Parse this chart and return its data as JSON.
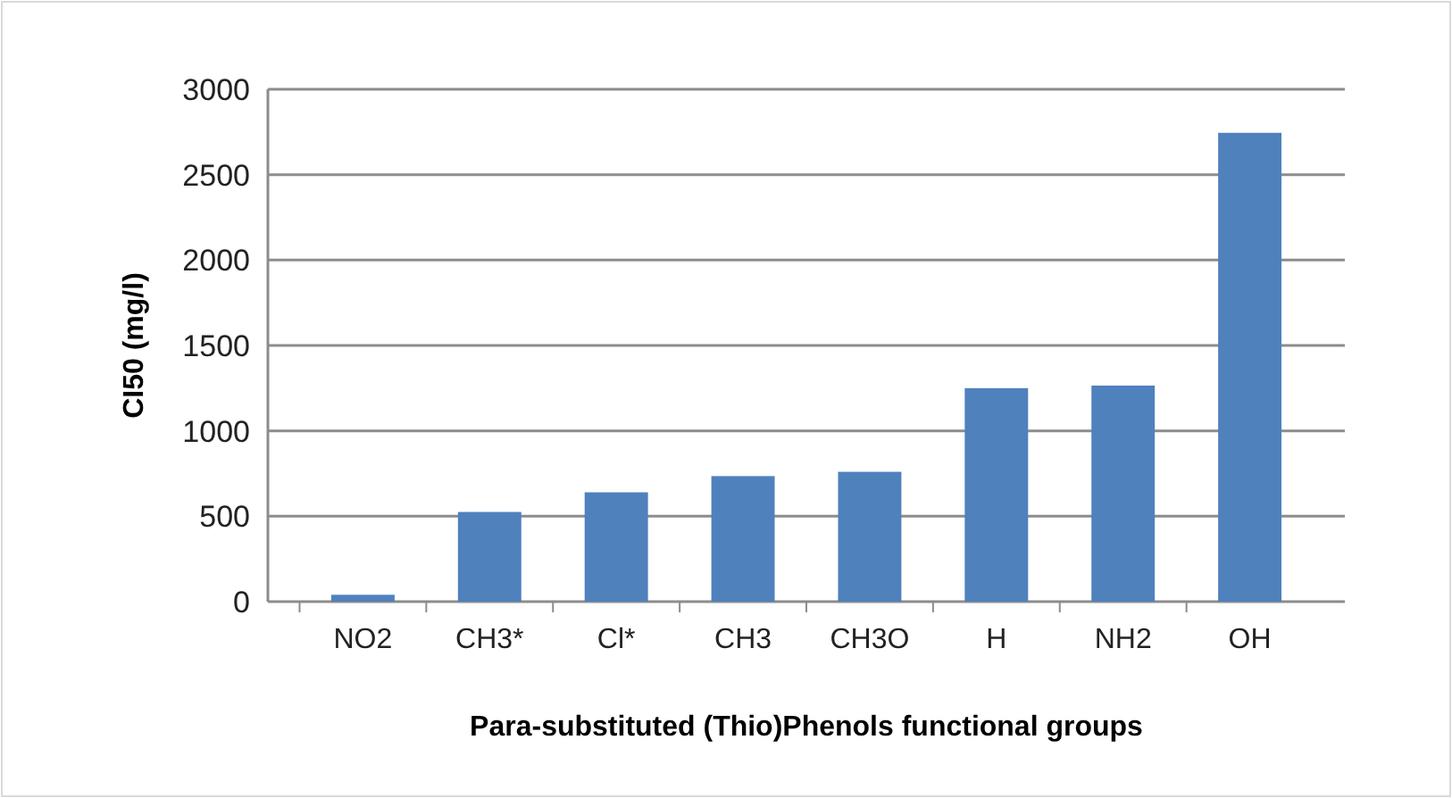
{
  "chart_data": {
    "type": "bar",
    "xlabel": "Para-substituted  (Thio)Phenols functional groups",
    "ylabel": "CI50 (mg/l)",
    "categories": [
      "NO2",
      "CH3*",
      "Cl*",
      "CH3",
      "CH3O",
      "H",
      "NH2",
      "OH"
    ],
    "values": [
      40,
      525,
      640,
      735,
      760,
      1250,
      1265,
      2745
    ],
    "color": "#4f81bd",
    "ylim": [
      0,
      3000
    ],
    "yticks": [
      0,
      500,
      1000,
      1500,
      2000,
      2500,
      3000
    ],
    "grid": "y"
  }
}
